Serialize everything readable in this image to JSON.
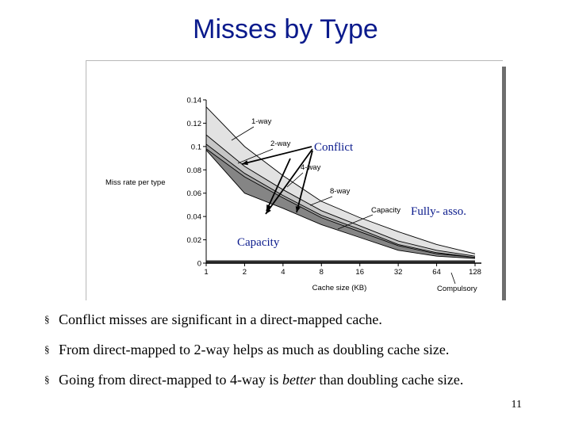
{
  "slide": {
    "title": "Misses by Type",
    "page_number": "11",
    "bullet_marker": "§",
    "bullets": [
      {
        "parts": [
          {
            "text": "Conflict misses are significant in a direct-mapped cache.",
            "italic": false
          }
        ]
      },
      {
        "parts": [
          {
            "text": "From direct-mapped to 2-way helps as much as doubling cache size.",
            "italic": false
          }
        ]
      },
      {
        "parts": [
          {
            "text": "Going from direct-mapped to 4-way is ",
            "italic": false
          },
          {
            "text": "better",
            "italic": true
          },
          {
            "text": " than doubling cache size.",
            "italic": false
          }
        ]
      }
    ]
  },
  "chart_data": {
    "type": "area",
    "xlabel": "Cache size (KB)",
    "ylabel": "Miss rate per type",
    "x": [
      1,
      2,
      4,
      8,
      16,
      32,
      64,
      128
    ],
    "x_tick_labels": [
      "1",
      "2",
      "4",
      "8",
      "16",
      "32",
      "64",
      "128"
    ],
    "y_ticks": [
      "0",
      "0.02",
      "0.04",
      "0.06",
      "0.08",
      "0.1",
      "0.12",
      "0.14"
    ],
    "ylim": [
      0,
      0.14
    ],
    "xscale": "log2",
    "series": [
      {
        "name": "1-way",
        "values": [
          0.134,
          0.1,
          0.075,
          0.053,
          0.039,
          0.027,
          0.016,
          0.008
        ],
        "color": "#e2e2e2"
      },
      {
        "name": "2-way",
        "values": [
          0.11,
          0.083,
          0.063,
          0.045,
          0.032,
          0.019,
          0.011,
          0.006
        ],
        "color": "#c6c6c6"
      },
      {
        "name": "4-way",
        "values": [
          0.102,
          0.077,
          0.058,
          0.041,
          0.029,
          0.016,
          0.009,
          0.005
        ],
        "color": "#a3a3a3"
      },
      {
        "name": "8-way",
        "values": [
          0.098,
          0.074,
          0.056,
          0.039,
          0.027,
          0.015,
          0.008,
          0.005
        ],
        "color": "#858585"
      },
      {
        "name": "Capacity",
        "values": [
          0.097,
          0.06,
          0.047,
          0.033,
          0.022,
          0.011,
          0.006,
          0.004
        ],
        "color": "#ffffff"
      },
      {
        "name": "Compulsory",
        "values": [
          0.002,
          0.002,
          0.002,
          0.002,
          0.002,
          0.002,
          0.002,
          0.002
        ],
        "color": "#404040"
      }
    ],
    "inline_labels": [
      "1-way",
      "2-way",
      "4-way",
      "8-way",
      "Capacity",
      "Compulsory"
    ],
    "annotations": [
      "Conflict",
      "Fully- asso.",
      "Capacity"
    ],
    "annotation_color": "#0a1a8c"
  }
}
